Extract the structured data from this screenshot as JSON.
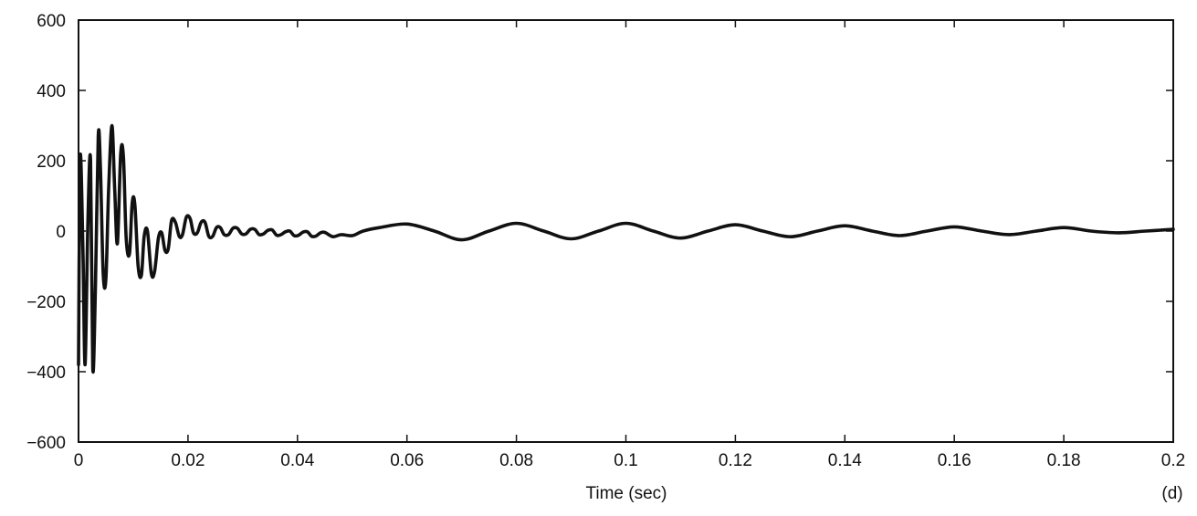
{
  "chart_data": {
    "type": "line",
    "title": "",
    "xlabel": "Time (sec)",
    "ylabel": "",
    "panel_label": "(d)",
    "xlim": [
      0,
      0.2
    ],
    "ylim": [
      -600,
      600
    ],
    "x_ticks": [
      0,
      0.02,
      0.04,
      0.06,
      0.08,
      0.1,
      0.12,
      0.14,
      0.16,
      0.18,
      0.2
    ],
    "x_tick_labels": [
      "0",
      "0.02",
      "0.04",
      "0.06",
      "0.08",
      "0.1",
      "0.12",
      "0.14",
      "0.16",
      "0.18",
      "0.2"
    ],
    "y_ticks": [
      600,
      400,
      200,
      0,
      -200,
      -400,
      -600
    ],
    "y_tick_labels": [
      "600",
      "400",
      "200",
      "0",
      "−200",
      "−400",
      "−600"
    ],
    "grid": false,
    "line_color": "#111111",
    "series": [
      {
        "x": [
          0,
          0.0003,
          0.0008,
          0.0012,
          0.0017,
          0.0022,
          0.0026,
          0.0031,
          0.0036,
          0.004,
          0.0045,
          0.005,
          0.0055,
          0.0061,
          0.0066,
          0.0071,
          0.0077,
          0.0082,
          0.0087,
          0.0093,
          0.0098,
          0.0103,
          0.0109,
          0.0115,
          0.012,
          0.0126,
          0.0133,
          0.0139,
          0.0146,
          0.0152,
          0.0158,
          0.0164,
          0.017,
          0.0177,
          0.0184,
          0.019,
          0.0197,
          0.0204,
          0.021,
          0.0217,
          0.0224,
          0.0231,
          0.0238,
          0.0245,
          0.0252,
          0.0259,
          0.0266,
          0.0274,
          0.0282,
          0.029,
          0.0298,
          0.0306,
          0.0314,
          0.0322,
          0.033,
          0.0338,
          0.0346,
          0.0354,
          0.0362,
          0.037,
          0.0378,
          0.0386,
          0.0394,
          0.0402,
          0.041,
          0.0418,
          0.0426,
          0.0434,
          0.0442,
          0.045,
          0.0465,
          0.048,
          0.05,
          0.052,
          0.055,
          0.06,
          0.065,
          0.07,
          0.075,
          0.08,
          0.085,
          0.09,
          0.095,
          0.1,
          0.105,
          0.11,
          0.115,
          0.12,
          0.125,
          0.13,
          0.135,
          0.14,
          0.145,
          0.15,
          0.155,
          0.16,
          0.165,
          0.17,
          0.175,
          0.18,
          0.185,
          0.19,
          0.195,
          0.2
        ],
        "y": [
          -380,
          210,
          -50,
          -380,
          20,
          200,
          -390,
          -150,
          270,
          180,
          -120,
          -135,
          120,
          300,
          120,
          -35,
          220,
          210,
          -20,
          -65,
          80,
          75,
          -100,
          -125,
          -15,
          0,
          -120,
          -115,
          -20,
          -5,
          -55,
          -50,
          30,
          25,
          -15,
          -10,
          40,
          35,
          -5,
          -5,
          25,
          25,
          -15,
          -15,
          10,
          10,
          -10,
          -10,
          8,
          8,
          -8,
          -8,
          5,
          5,
          -10,
          -8,
          2,
          3,
          -12,
          -10,
          -2,
          0,
          -13,
          -12,
          -3,
          -2,
          -15,
          -14,
          -5,
          -4,
          -16,
          -10,
          -13,
          0,
          10,
          20,
          0,
          -25,
          0,
          22,
          0,
          -22,
          0,
          22,
          0,
          -20,
          0,
          18,
          0,
          -16,
          0,
          15,
          0,
          -13,
          0,
          12,
          0,
          -10,
          0,
          10,
          0,
          -5,
          0,
          5
        ]
      }
    ]
  }
}
